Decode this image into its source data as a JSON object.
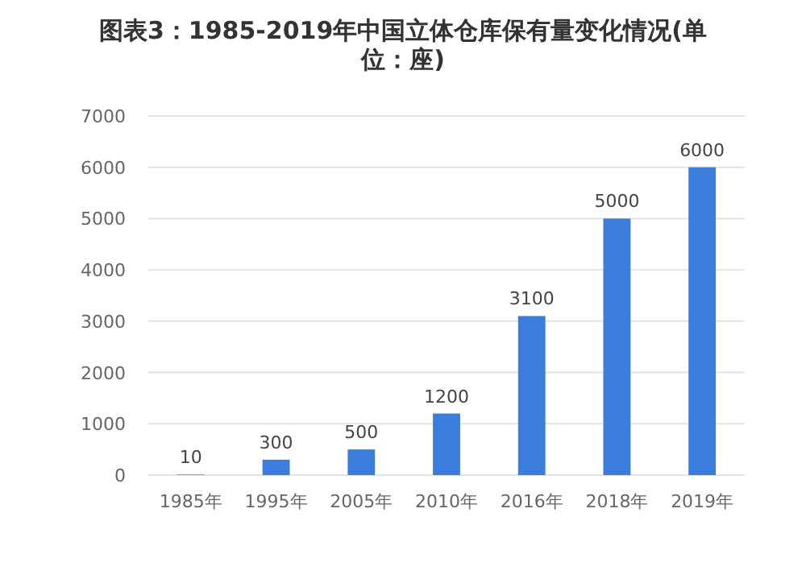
{
  "chart_data": {
    "type": "bar",
    "title": "图表3：1985-2019年中国立体仓库保有量变化情况(单位：座)",
    "categories": [
      "1985年",
      "1995年",
      "2005年",
      "2010年",
      "2016年",
      "2018年",
      "2019年"
    ],
    "values": [
      10,
      300,
      500,
      1200,
      3100,
      5000,
      6000
    ],
    "color": "#3b7ddd",
    "ylim": [
      0,
      7000
    ],
    "yticks": [
      0,
      1000,
      2000,
      3000,
      4000,
      5000,
      6000,
      7000
    ],
    "grid": "y",
    "data_labels": true
  }
}
